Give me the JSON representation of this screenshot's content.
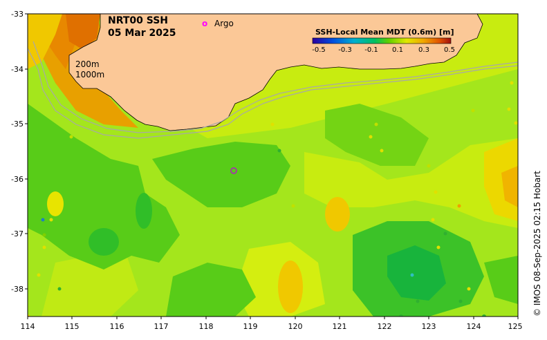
{
  "title": {
    "line1": "NRT00 SSH",
    "line2": "05 Mar 2025"
  },
  "legend": {
    "argo_marker": "o",
    "argo_label": "Argo",
    "colorbar_title": "SSH-Local Mean MDT (0.6m) [m]",
    "colorbar_ticks": [
      "-0.5",
      "-0.3",
      "-0.1",
      "0.1",
      "0.3",
      "0.5"
    ],
    "colorbar_colors": [
      "#2a00a0",
      "#0050e0",
      "#00a0e0",
      "#00c878",
      "#30c020",
      "#a0e000",
      "#e8e000",
      "#f0b000",
      "#e86000",
      "#a01010"
    ]
  },
  "isobaths": {
    "shallow": "200m",
    "deep": "1000m"
  },
  "axes": {
    "x_ticks": [
      "114",
      "115",
      "116",
      "117",
      "118",
      "119",
      "120",
      "121",
      "122",
      "123",
      "124",
      "125"
    ],
    "y_ticks": [
      "-33",
      "-34",
      "-35",
      "-36",
      "-37",
      "-38"
    ]
  },
  "credit": "© IMOS 08-Sep-2025 02:15 Hobart",
  "colors": {
    "land": "#fbc897",
    "ocean_base": "#9ee21e",
    "isobath_line": "#a8a8a8",
    "argo": "#ff00ff"
  }
}
